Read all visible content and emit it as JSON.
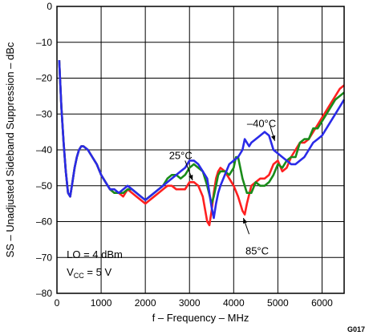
{
  "figure_id": "G017",
  "chart_data": {
    "type": "line",
    "xlabel": "f – Frequency – MHz",
    "ylabel": "SS – Unadjusted Sideband Suppression – dBc",
    "xlim": [
      0,
      6500
    ],
    "ylim": [
      -80,
      0
    ],
    "xticks": [
      "0",
      "1000",
      "2000",
      "3000",
      "4000",
      "5000",
      "6000"
    ],
    "yticks": [
      "0",
      "–10",
      "–20",
      "–30",
      "–40",
      "–50",
      "–60",
      "–70",
      "–80"
    ],
    "grid": true,
    "annotations": {
      "lo": "LO = 4 dBm",
      "vcc_main": "V",
      "vcc_sub": "CC",
      "vcc_rest": " = 5 V"
    },
    "series": [
      {
        "name": "85°C",
        "color": "#ff2020",
        "x": [
          50,
          100,
          150,
          200,
          250,
          300,
          350,
          400,
          450,
          500,
          550,
          600,
          700,
          800,
          900,
          1000,
          1100,
          1200,
          1300,
          1400,
          1500,
          1600,
          1700,
          1800,
          1900,
          2000,
          2100,
          2200,
          2300,
          2400,
          2500,
          2600,
          2700,
          2800,
          2900,
          3000,
          3100,
          3200,
          3300,
          3400,
          3450,
          3500,
          3550,
          3600,
          3650,
          3700,
          3800,
          3900,
          4000,
          4100,
          4200,
          4250,
          4300,
          4400,
          4500,
          4600,
          4700,
          4800,
          4900,
          5000,
          5100,
          5200,
          5300,
          5400,
          5500,
          5600,
          5700,
          5800,
          5900,
          6000,
          6100,
          6200,
          6300,
          6400,
          6500
        ],
        "y": [
          -15,
          -28,
          -38,
          -46,
          -52,
          -53,
          -49,
          -45,
          -42,
          -40,
          -39,
          -39,
          -40,
          -42,
          -44,
          -47,
          -49,
          -51,
          -52,
          -52,
          -53,
          -51,
          -52,
          -53,
          -54,
          -55,
          -54,
          -53,
          -52,
          -51,
          -50,
          -50,
          -51,
          -51,
          -51,
          -49,
          -49,
          -50,
          -53,
          -60,
          -61,
          -57,
          -52,
          -48,
          -46,
          -45,
          -46,
          -48,
          -50,
          -53,
          -57,
          -58,
          -55,
          -50,
          -49,
          -48,
          -48,
          -47,
          -44,
          -43,
          -46,
          -45,
          -42,
          -40,
          -38,
          -38,
          -37,
          -35,
          -33,
          -31,
          -29,
          -27,
          -25,
          -23,
          -22
        ]
      },
      {
        "name": "25°C",
        "color": "#1a8c1a",
        "x": [
          50,
          100,
          150,
          200,
          250,
          300,
          350,
          400,
          450,
          500,
          550,
          600,
          700,
          800,
          900,
          1000,
          1100,
          1200,
          1300,
          1400,
          1500,
          1600,
          1700,
          1800,
          1900,
          2000,
          2100,
          2200,
          2300,
          2400,
          2500,
          2600,
          2700,
          2800,
          2900,
          3000,
          3100,
          3200,
          3300,
          3400,
          3500,
          3550,
          3600,
          3650,
          3700,
          3800,
          3900,
          4000,
          4050,
          4100,
          4200,
          4300,
          4400,
          4500,
          4600,
          4700,
          4800,
          4900,
          5000,
          5100,
          5200,
          5300,
          5400,
          5500,
          5600,
          5700,
          5800,
          5900,
          6000,
          6100,
          6200,
          6300,
          6400,
          6500
        ],
        "y": [
          -15,
          -28,
          -38,
          -46,
          -52,
          -53,
          -49,
          -45,
          -42,
          -40,
          -39,
          -39,
          -40,
          -42,
          -44,
          -47,
          -49,
          -51,
          -52,
          -52,
          -52,
          -51,
          -51,
          -52,
          -53,
          -54,
          -53,
          -52,
          -51,
          -50,
          -48,
          -47,
          -47,
          -48,
          -47,
          -45,
          -44,
          -45,
          -46,
          -50,
          -55,
          -53,
          -50,
          -47,
          -46,
          -46,
          -47,
          -45,
          -42,
          -42,
          -48,
          -52,
          -52,
          -49,
          -50,
          -50,
          -49,
          -47,
          -44,
          -45,
          -43,
          -42,
          -42,
          -38,
          -37,
          -37,
          -34,
          -34,
          -32,
          -30,
          -28,
          -26,
          -25,
          -24
        ]
      },
      {
        "name": "–40°C",
        "color": "#2a2ae8",
        "x": [
          50,
          100,
          150,
          200,
          250,
          300,
          350,
          400,
          450,
          500,
          550,
          600,
          700,
          800,
          900,
          1000,
          1100,
          1200,
          1300,
          1400,
          1500,
          1600,
          1700,
          1800,
          1900,
          2000,
          2100,
          2200,
          2300,
          2400,
          2500,
          2600,
          2700,
          2800,
          2900,
          3000,
          3100,
          3200,
          3300,
          3400,
          3500,
          3550,
          3600,
          3650,
          3700,
          3800,
          3900,
          4000,
          4100,
          4200,
          4250,
          4300,
          4350,
          4400,
          4500,
          4600,
          4700,
          4800,
          4900,
          5000,
          5100,
          5200,
          5300,
          5400,
          5500,
          5600,
          5700,
          5800,
          5900,
          6000,
          6100,
          6200,
          6300,
          6400,
          6500
        ],
        "y": [
          -15,
          -28,
          -38,
          -46,
          -52,
          -53,
          -49,
          -45,
          -42,
          -40,
          -39,
          -39,
          -40,
          -42,
          -44,
          -47,
          -49,
          -51,
          -51,
          -52,
          -51,
          -50,
          -51,
          -52,
          -53,
          -54,
          -53,
          -52,
          -51,
          -50,
          -49,
          -48,
          -47,
          -46,
          -45,
          -43,
          -43,
          -44,
          -46,
          -48,
          -56,
          -59,
          -55,
          -52,
          -50,
          -47,
          -44,
          -43,
          -42,
          -40,
          -37,
          -38,
          -39,
          -38,
          -37,
          -36,
          -35,
          -36,
          -40,
          -41,
          -42,
          -43,
          -44,
          -44,
          -43,
          -42,
          -40,
          -38,
          -37,
          -36,
          -34,
          -32,
          -30,
          -28,
          -26
        ]
      }
    ]
  }
}
